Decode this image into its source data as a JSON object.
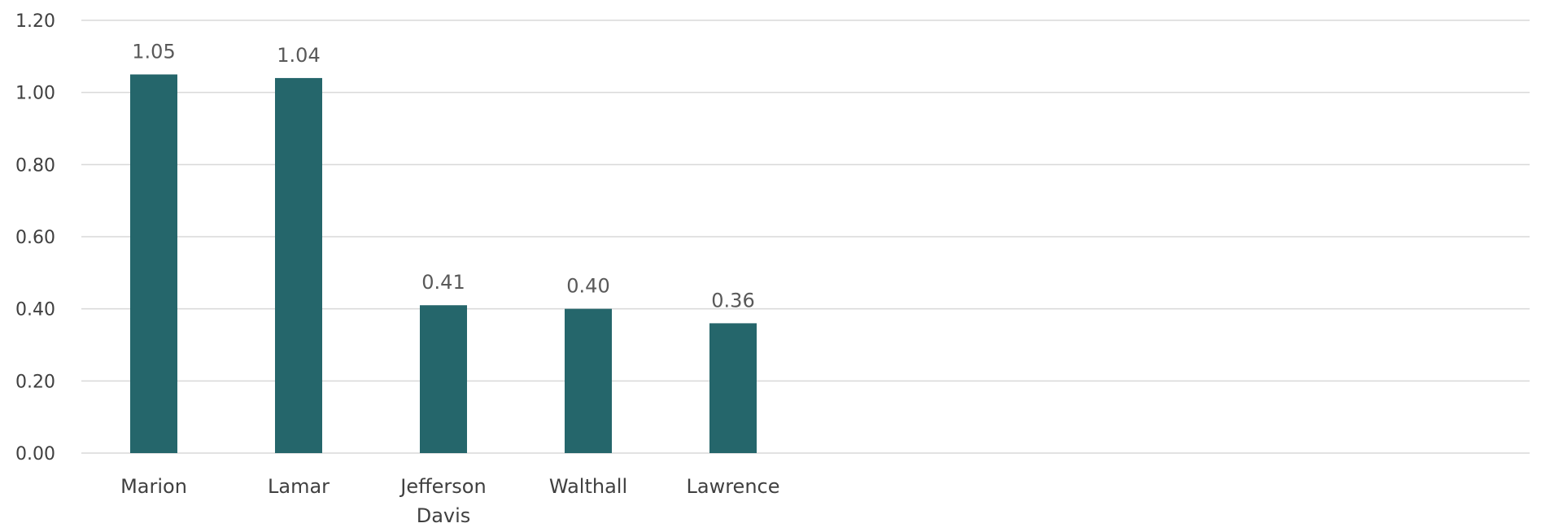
{
  "chart_data": {
    "type": "bar",
    "categories": [
      [
        "Marion"
      ],
      [
        "Lamar"
      ],
      [
        "Jefferson",
        "Davis"
      ],
      [
        "Walthall"
      ],
      [
        "Lawrence"
      ]
    ],
    "values": [
      1.05,
      1.04,
      0.41,
      0.4,
      0.36
    ],
    "data_labels": [
      "1.05",
      "1.04",
      "0.41",
      "0.40",
      "0.36"
    ],
    "ylim": [
      0,
      1.2
    ],
    "yticks": [
      "0.00",
      "0.20",
      "0.40",
      "0.60",
      "0.80",
      "1.00",
      "1.20"
    ],
    "grid": true,
    "legend": "none",
    "title": "",
    "xlabel": "",
    "ylabel": "",
    "bar_color": "#25666b",
    "grid_color": "#d9d9d9",
    "text_color": "#404040"
  }
}
